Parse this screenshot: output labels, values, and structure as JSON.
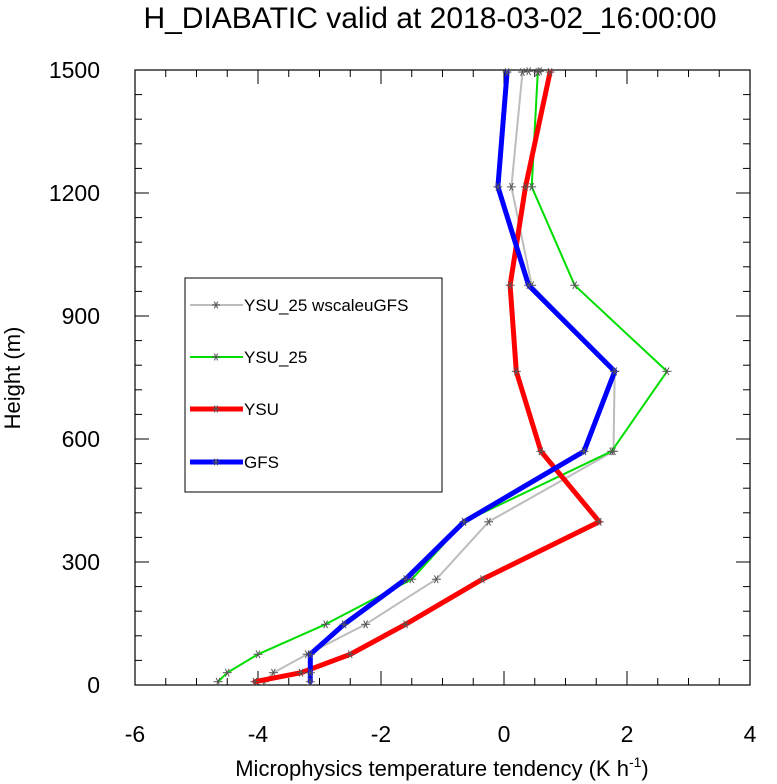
{
  "chart_data": {
    "type": "line",
    "title": "H_DIABATIC valid at 2018-03-02_16:00:00",
    "xlabel": "Microphysics temperature tendency (K h",
    "xlabel_sup": "-1",
    "xlabel_end": ")",
    "ylabel": "Height (m)",
    "xlim": [
      -6,
      4
    ],
    "ylim": [
      0,
      1500
    ],
    "xticks": [
      "-6",
      "-4",
      "-2",
      "0",
      "2",
      "4"
    ],
    "yticks": [
      "0",
      "300",
      "600",
      "900",
      "1200",
      "1500"
    ],
    "grid": false,
    "legend_position": "left-middle",
    "series": [
      {
        "name": "YSU_25 wscaleuGFS",
        "color": "#bdbdbd",
        "width": "thin",
        "x": [
          -3.9,
          -3.75,
          -3.2,
          -2.25,
          -1.1,
          -0.25,
          1.78,
          1.8,
          0.45,
          0.12,
          0.3,
          0.4
        ],
        "y": [
          8,
          30,
          75,
          148,
          258,
          398,
          570,
          765,
          975,
          1215,
          1495,
          1497
        ]
      },
      {
        "name": "YSU_25",
        "color": "#00dd00",
        "width": "thin",
        "x": [
          -4.65,
          -4.5,
          -4.0,
          -2.9,
          -1.5,
          -0.65,
          1.75,
          2.65,
          1.15,
          0.45,
          0.55,
          0.58
        ],
        "y": [
          8,
          30,
          75,
          148,
          258,
          398,
          570,
          765,
          975,
          1215,
          1495,
          1497
        ]
      },
      {
        "name": "YSU",
        "color": "#ff0000",
        "width": "thick",
        "x": [
          -4.05,
          -3.3,
          -2.5,
          -1.6,
          -0.35,
          1.55,
          0.6,
          0.2,
          0.1,
          0.35,
          0.75
        ],
        "y": [
          8,
          30,
          75,
          148,
          258,
          398,
          570,
          765,
          975,
          1215,
          1495
        ]
      },
      {
        "name": "GFS",
        "color": "#0000ff",
        "width": "thick",
        "x": [
          -3.15,
          -3.15,
          -3.15,
          -2.6,
          -1.6,
          -0.65,
          1.3,
          1.8,
          0.4,
          -0.1,
          0.05
        ],
        "y": [
          8,
          30,
          75,
          148,
          258,
          398,
          570,
          765,
          975,
          1215,
          1495
        ]
      }
    ]
  }
}
